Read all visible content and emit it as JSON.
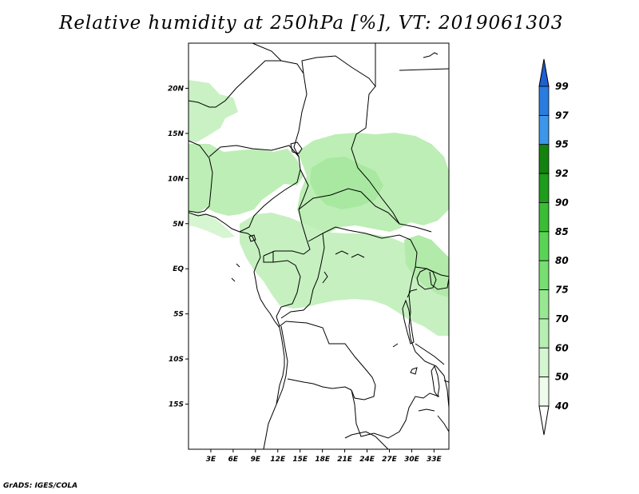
{
  "title": "Relative humidity at 250hPa [%], VT: 2019061303",
  "credit": "GrADS: IGES/COLA",
  "map": {
    "projection": "latlon",
    "lon_range": [
      0,
      35
    ],
    "lat_range": [
      -20,
      25
    ],
    "lat_labels": [
      "20N",
      "15N",
      "10N",
      "5N",
      "EQ",
      "5S",
      "10S",
      "15S"
    ],
    "lat_values": [
      20,
      15,
      10,
      5,
      0,
      -5,
      -10,
      -15
    ],
    "lon_labels": [
      "3E",
      "6E",
      "9E",
      "12E",
      "15E",
      "18E",
      "21E",
      "24E",
      "27E",
      "30E",
      "33E"
    ],
    "lon_values": [
      3,
      6,
      9,
      12,
      15,
      18,
      21,
      24,
      27,
      30,
      33
    ],
    "field": "Relative humidity",
    "level": "250hPa",
    "units": "%",
    "valid_time": "2019061303"
  },
  "colorbar": {
    "labels": [
      "99",
      "97",
      "95",
      "92",
      "90",
      "85",
      "80",
      "75",
      "70",
      "60",
      "50",
      "40"
    ],
    "colors": [
      "#1e5fd2",
      "#2a7de0",
      "#3c96ea",
      "#13830f",
      "#1e9c1c",
      "#3bbd36",
      "#5ad455",
      "#78de72",
      "#98e792",
      "#b6efb1",
      "#d4f6d0",
      "#eefcec"
    ],
    "extend": "both"
  }
}
